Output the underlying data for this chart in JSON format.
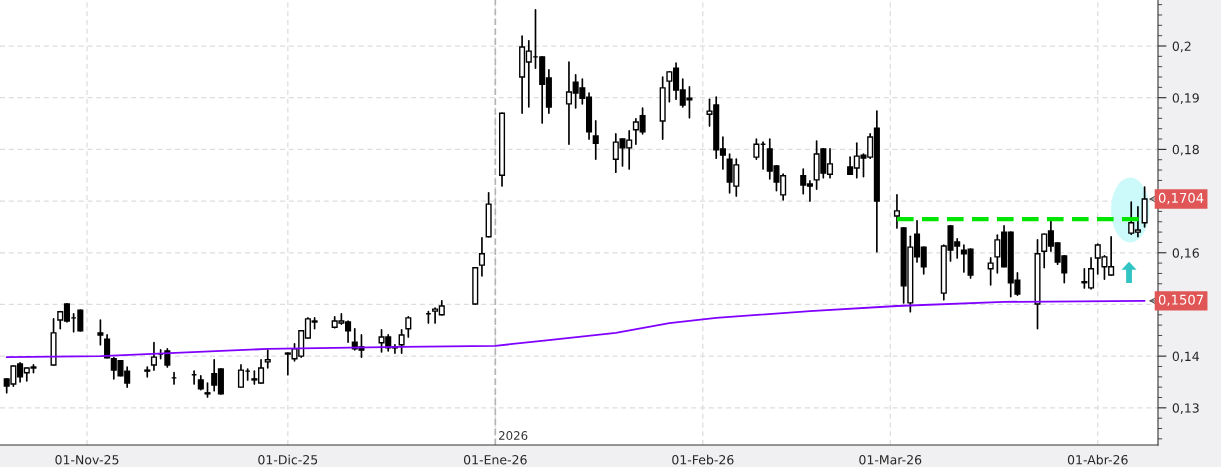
{
  "chart_data": {
    "type": "candlestick",
    "color": "#000000",
    "x": [
      "2025-10-20",
      "2025-10-21",
      "2025-10-22",
      "2025-10-23",
      "2025-10-24",
      "2025-10-27",
      "2025-10-28",
      "2025-10-29",
      "2025-10-30",
      "2025-10-31",
      "2025-11-03",
      "2025-11-04",
      "2025-11-05",
      "2025-11-06",
      "2025-11-07",
      "2025-11-10",
      "2025-11-11",
      "2025-11-12",
      "2025-11-13",
      "2025-11-14",
      "2025-11-17",
      "2025-11-18",
      "2025-11-19",
      "2025-11-20",
      "2025-11-21",
      "2025-11-24",
      "2025-11-25",
      "2025-11-26",
      "2025-11-27",
      "2025-11-28",
      "2025-12-01",
      "2025-12-02",
      "2025-12-03",
      "2025-12-04",
      "2025-12-05",
      "2025-12-08",
      "2025-12-09",
      "2025-12-10",
      "2025-12-11",
      "2025-12-12",
      "2025-12-15",
      "2025-12-16",
      "2025-12-17",
      "2025-12-18",
      "2025-12-19",
      "2025-12-22",
      "2025-12-23",
      "2025-12-24",
      "2025-12-29",
      "2025-12-30",
      "2025-12-31",
      "2026-01-02",
      "2026-01-05",
      "2026-01-06",
      "2026-01-07",
      "2026-01-08",
      "2026-01-09",
      "2026-01-12",
      "2026-01-13",
      "2026-01-14",
      "2026-01-15",
      "2026-01-16",
      "2026-01-19",
      "2026-01-20",
      "2026-01-21",
      "2026-01-22",
      "2026-01-23",
      "2026-01-26",
      "2026-01-27",
      "2026-01-28",
      "2026-01-29",
      "2026-01-30",
      "2026-02-02",
      "2026-02-03",
      "2026-02-04",
      "2026-02-05",
      "2026-02-06",
      "2026-02-09",
      "2026-02-10",
      "2026-02-11",
      "2026-02-12",
      "2026-02-13",
      "2026-02-16",
      "2026-02-17",
      "2026-02-18",
      "2026-02-19",
      "2026-02-20",
      "2026-02-23",
      "2026-02-24",
      "2026-02-25",
      "2026-02-26",
      "2026-02-27",
      "2026-03-02",
      "2026-03-03",
      "2026-03-04",
      "2026-03-05",
      "2026-03-06",
      "2026-03-09",
      "2026-03-10",
      "2026-03-11",
      "2026-03-12",
      "2026-03-13",
      "2026-03-16",
      "2026-03-17",
      "2026-03-18",
      "2026-03-19",
      "2026-03-20",
      "2026-03-23",
      "2026-03-24",
      "2026-03-25",
      "2026-03-26",
      "2026-03-27",
      "2026-03-30",
      "2026-03-31",
      "2026-04-01",
      "2026-04-02",
      "2026-04-03",
      "2026-04-06",
      "2026-04-07",
      "2026-04-08"
    ],
    "ohlc": [
      [
        0.1356,
        0.1356,
        0.1329,
        0.1342
      ],
      [
        0.1346,
        0.1381,
        0.1342,
        0.1381
      ],
      [
        0.1385,
        0.1387,
        0.135,
        0.136
      ],
      [
        0.1368,
        0.1377,
        0.1352,
        0.1377
      ],
      [
        0.1377,
        0.1383,
        0.1368,
        0.1379
      ],
      [
        0.1383,
        0.1472,
        0.1383,
        0.1445
      ],
      [
        0.147,
        0.1486,
        0.1453,
        0.1486
      ],
      [
        0.1501,
        0.1501,
        0.1466,
        0.1468
      ],
      [
        0.1474,
        0.1482,
        0.1447,
        0.1474
      ],
      [
        0.1489,
        0.1489,
        0.1449,
        0.1449
      ],
      [
        0.1445,
        0.147,
        0.1422,
        0.1441
      ],
      [
        0.1433,
        0.1441,
        0.1397,
        0.1397
      ],
      [
        0.1395,
        0.1397,
        0.1356,
        0.1373
      ],
      [
        0.1391,
        0.1391,
        0.1362,
        0.1362
      ],
      [
        0.1371,
        0.1379,
        0.134,
        0.1348
      ],
      [
        0.1371,
        0.1379,
        0.136,
        0.1373
      ],
      [
        0.1383,
        0.1426,
        0.1373,
        0.1398
      ],
      [
        0.1404,
        0.1412,
        0.1395,
        0.1404
      ],
      [
        0.141,
        0.1414,
        0.1379,
        0.1383
      ],
      [
        0.1358,
        0.1368,
        0.1346,
        0.1358
      ],
      [
        0.1364,
        0.1371,
        0.1346,
        0.1364
      ],
      [
        0.1354,
        0.1362,
        0.1335,
        0.1337
      ],
      [
        0.1329,
        0.1348,
        0.1321,
        0.1327
      ],
      [
        0.1366,
        0.1393,
        0.1333,
        0.1344
      ],
      [
        0.1375,
        0.1375,
        0.1327,
        0.1327
      ],
      [
        0.134,
        0.1383,
        0.134,
        0.1373
      ],
      [
        0.1371,
        0.1375,
        0.1354,
        0.1371
      ],
      [
        0.1356,
        0.1371,
        0.1346,
        0.1354
      ],
      [
        0.1348,
        0.1393,
        0.1348,
        0.1377
      ],
      [
        0.1389,
        0.1412,
        0.1377,
        0.1393
      ],
      [
        0.1404,
        0.1406,
        0.1364,
        0.1406
      ],
      [
        0.1395,
        0.1424,
        0.1391,
        0.1414
      ],
      [
        0.14,
        0.1449,
        0.1398,
        0.1449
      ],
      [
        0.1435,
        0.1474,
        0.1435,
        0.1472
      ],
      [
        0.1468,
        0.1474,
        0.1453,
        0.1466
      ],
      [
        0.1456,
        0.1476,
        0.1455,
        0.1468
      ],
      [
        0.1464,
        0.1482,
        0.1462,
        0.1468
      ],
      [
        0.1466,
        0.1468,
        0.1427,
        0.1449
      ],
      [
        0.1427,
        0.1453,
        0.1412,
        0.1414
      ],
      [
        0.1418,
        0.1441,
        0.1398,
        0.1412
      ],
      [
        0.1426,
        0.1451,
        0.1408,
        0.1437
      ],
      [
        0.1437,
        0.1441,
        0.141,
        0.1416
      ],
      [
        0.1418,
        0.1422,
        0.1406,
        0.1416
      ],
      [
        0.1422,
        0.1451,
        0.1406,
        0.1441
      ],
      [
        0.1453,
        0.1476,
        0.1437,
        0.1474
      ],
      [
        0.1482,
        0.1486,
        0.1464,
        0.1482
      ],
      [
        0.1487,
        0.1493,
        0.1464,
        0.1491
      ],
      [
        0.148,
        0.1507,
        0.148,
        0.1497
      ],
      [
        0.1501,
        0.1571,
        0.1501,
        0.1571
      ],
      [
        0.1576,
        0.1629,
        0.1555,
        0.1598
      ],
      [
        0.1631,
        0.1716,
        0.1631,
        0.1694
      ],
      [
        0.175,
        0.187,
        0.1729,
        0.187
      ],
      [
        0.194,
        0.2019,
        0.187,
        0.1998
      ],
      [
        0.1969,
        0.201,
        0.1882,
        0.199
      ],
      [
        0.1979,
        0.207,
        0.1957,
        0.1979
      ],
      [
        0.1979,
        0.1979,
        0.1851,
        0.1926
      ],
      [
        0.1938,
        0.1954,
        0.187,
        0.1882
      ],
      [
        0.1888,
        0.1969,
        0.181,
        0.1911
      ],
      [
        0.193,
        0.1944,
        0.188,
        0.1909
      ],
      [
        0.1919,
        0.1936,
        0.1888,
        0.1899
      ],
      [
        0.1901,
        0.1909,
        0.182,
        0.1834
      ],
      [
        0.1826,
        0.1855,
        0.1781,
        0.1812
      ],
      [
        0.1781,
        0.183,
        0.1756,
        0.1814
      ],
      [
        0.182,
        0.182,
        0.1768,
        0.1803
      ],
      [
        0.1803,
        0.1836,
        0.1762,
        0.1818
      ],
      [
        0.1838,
        0.1859,
        0.181,
        0.1853
      ],
      [
        0.1865,
        0.188,
        0.183,
        0.1834
      ],
      [
        0.1855,
        0.194,
        0.182,
        0.1919
      ],
      [
        0.1932,
        0.195,
        0.1892,
        0.195
      ],
      [
        0.1957,
        0.1967,
        0.1897,
        0.1915
      ],
      [
        0.1915,
        0.1936,
        0.1882,
        0.1886
      ],
      [
        0.1899,
        0.1921,
        0.1861,
        0.1896
      ],
      [
        0.1868,
        0.1897,
        0.1845,
        0.1874
      ],
      [
        0.1886,
        0.1901,
        0.1783,
        0.1799
      ],
      [
        0.1801,
        0.1824,
        0.1762,
        0.1789
      ],
      [
        0.1781,
        0.1791,
        0.1716,
        0.1737
      ],
      [
        0.1729,
        0.1781,
        0.171,
        0.177
      ],
      [
        0.1785,
        0.182,
        0.1781,
        0.181
      ],
      [
        0.181,
        0.1814,
        0.1762,
        0.181
      ],
      [
        0.1801,
        0.182,
        0.1743,
        0.1758
      ],
      [
        0.1768,
        0.1768,
        0.172,
        0.1737
      ],
      [
        0.1712,
        0.1752,
        0.1702,
        0.1749
      ],
      [
        0.1749,
        0.1762,
        0.1714,
        0.1731
      ],
      [
        0.1733,
        0.1739,
        0.17,
        0.1729
      ],
      [
        0.1741,
        0.1816,
        0.1723,
        0.1791
      ],
      [
        0.1801,
        0.1801,
        0.1745,
        0.1754
      ],
      [
        0.1752,
        0.1801,
        0.1745,
        0.1772
      ],
      [
        0.1766,
        0.1785,
        0.1752,
        0.1752
      ],
      [
        0.1764,
        0.1812,
        0.1745,
        0.1787
      ],
      [
        0.1789,
        0.1791,
        0.1747,
        0.1783
      ],
      [
        0.1785,
        0.183,
        0.1783,
        0.1824
      ],
      [
        0.1841,
        0.1874,
        0.1602,
        0.17
      ],
      [
        0.1671,
        0.1712,
        0.1648,
        0.1681
      ],
      [
        0.1648,
        0.1648,
        0.1503,
        0.1536
      ],
      [
        0.1503,
        0.1632,
        0.1486,
        0.1611
      ],
      [
        0.1636,
        0.1662,
        0.1582,
        0.1592
      ],
      [
        0.1611,
        0.1611,
        0.1559,
        0.1573
      ],
      [
        0.1522,
        0.1615,
        0.1509,
        0.1613
      ],
      [
        0.1652,
        0.1652,
        0.1584,
        0.1605
      ],
      [
        0.1621,
        0.1627,
        0.159,
        0.1613
      ],
      [
        0.1605,
        0.1615,
        0.1563,
        0.1598
      ],
      [
        0.1607,
        0.1607,
        0.1551,
        0.1557
      ],
      [
        0.1569,
        0.159,
        0.1538,
        0.158
      ],
      [
        0.1592,
        0.1634,
        0.1561,
        0.1625
      ],
      [
        0.164,
        0.1652,
        0.1573,
        0.1573
      ],
      [
        0.164,
        0.164,
        0.1515,
        0.1542
      ],
      [
        0.1547,
        0.1561,
        0.1518,
        0.152
      ],
      [
        0.1501,
        0.1625,
        0.1453,
        0.1598
      ],
      [
        0.1603,
        0.1636,
        0.1571,
        0.1636
      ],
      [
        0.1642,
        0.1662,
        0.1603,
        0.1613
      ],
      [
        0.1619,
        0.1619,
        0.1578,
        0.1582
      ],
      [
        0.1594,
        0.1594,
        0.1542,
        0.1561
      ],
      [
        0.1544,
        0.1569,
        0.1532,
        0.1542
      ],
      [
        0.1532,
        0.159,
        0.153,
        0.1569
      ],
      [
        0.159,
        0.1617,
        0.1559,
        0.1615
      ],
      [
        0.1573,
        0.1594,
        0.1549,
        0.1592
      ],
      [
        0.1557,
        0.1631,
        0.1557,
        0.1573
      ],
      [
        0.1638,
        0.1698,
        0.1636,
        0.1658
      ],
      [
        0.164,
        0.1689,
        0.1631,
        0.1644
      ],
      [
        0.1658,
        0.1727,
        0.165,
        0.1704
      ]
    ],
    "series": [
      {
        "type": "line",
        "color": "#8000ff",
        "line_style": "solid",
        "x": [
          "2025-10-20",
          "2025-11-03",
          "2025-11-28",
          "2025-12-18",
          "2026-01-01",
          "2026-01-09",
          "2026-01-19",
          "2026-01-27",
          "2026-02-03",
          "2026-02-17",
          "2026-03-02",
          "2026-03-18",
          "2026-04-08"
        ],
        "values": [
          0.1398,
          0.14,
          0.1414,
          0.1418,
          0.142,
          0.1431,
          0.1445,
          0.1464,
          0.1474,
          0.1487,
          0.1497,
          0.1505,
          0.1507
        ]
      },
      {
        "type": "line",
        "color": "#00e600",
        "line_style": "dashed",
        "x": [
          "2026-03-02",
          "2026-04-08"
        ],
        "values": [
          0.1665,
          0.1665
        ]
      }
    ],
    "xlim": [
      "2025-10-19",
      "2026-04-10"
    ],
    "xticks": [
      {
        "value": "2025-11-01",
        "label": "01-Nov-25"
      },
      {
        "value": "2025-12-01",
        "label": "01-Dic-25"
      },
      {
        "value": "2026-01-01",
        "label": "01-Ene-26"
      },
      {
        "value": "2026-02-01",
        "label": "01-Feb-26"
      },
      {
        "value": "2026-03-01",
        "label": "01-Mar-26"
      },
      {
        "value": "2026-04-01",
        "label": "01-Abr-26"
      }
    ],
    "ylim": [
      0.1228,
      0.2089
    ],
    "yticks": [
      {
        "value": 0.13,
        "label": "0,13"
      },
      {
        "value": 0.14,
        "label": "0,14"
      },
      {
        "value": 0.15,
        "label": null
      },
      {
        "value": 0.16,
        "label": "0,16"
      },
      {
        "value": 0.17,
        "label": null
      },
      {
        "value": 0.18,
        "label": "0,18"
      },
      {
        "value": 0.19,
        "label": "0,19"
      },
      {
        "value": 0.2,
        "label": "0,2"
      }
    ],
    "ref_lines": [
      {
        "axis": "x",
        "value": "2026-01-01",
        "label": "2026",
        "color": "#b4b4b4",
        "line_style": "dashed"
      }
    ],
    "annotations": [
      {
        "text": "0,1704",
        "x": "2026-04-08",
        "y": 0.1704
      },
      {
        "text": "0,1507",
        "x": "2026-04-08",
        "y": 0.1507
      }
    ],
    "grid": true,
    "legend": false
  }
}
